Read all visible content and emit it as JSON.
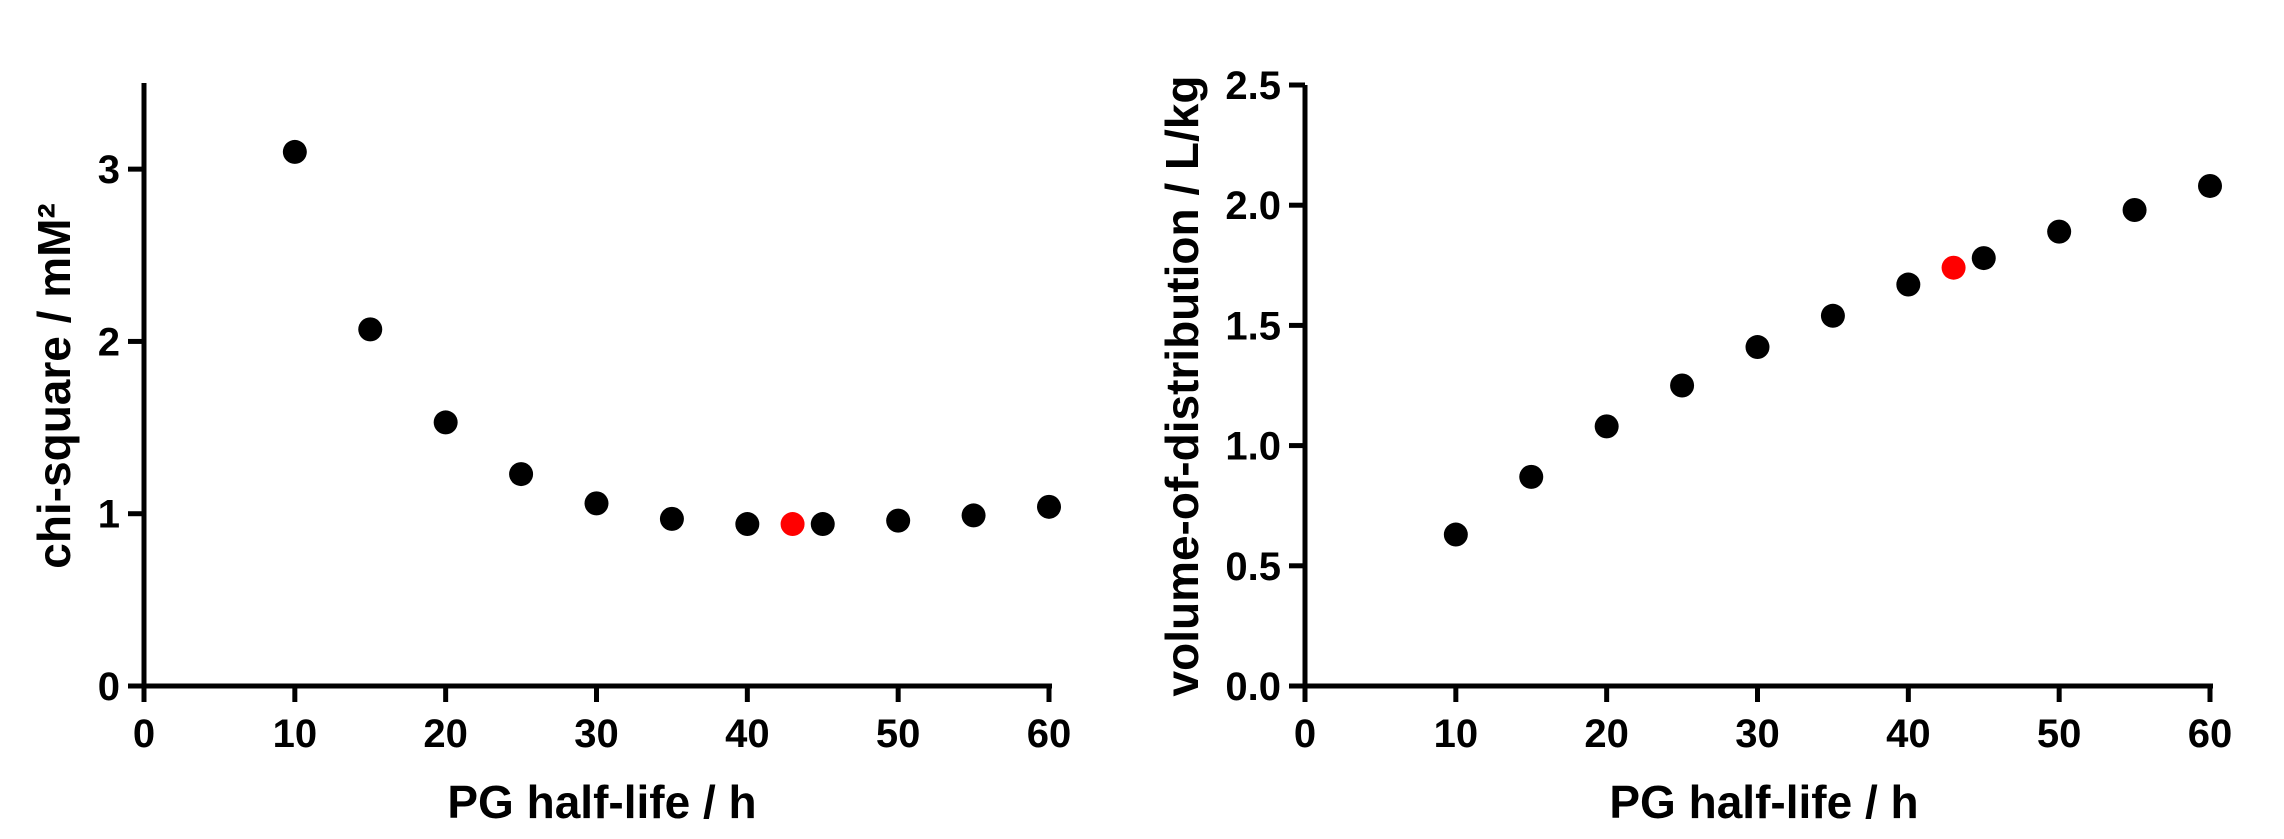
{
  "chart_data": [
    {
      "type": "scatter",
      "xlabel": "PG half-life / h",
      "ylabel": "chi-square / mM²",
      "xlim": [
        0,
        60
      ],
      "ylim": [
        0,
        3.5
      ],
      "xticks": [
        "0",
        "10",
        "20",
        "30",
        "40",
        "50",
        "60"
      ],
      "yticks": [
        "0",
        "1",
        "2",
        "3"
      ],
      "grid": false,
      "series": [
        {
          "color": "#000000",
          "points": [
            [
              10,
              3.1
            ],
            [
              15,
              2.07
            ],
            [
              20,
              1.53
            ],
            [
              25,
              1.23
            ],
            [
              30,
              1.06
            ],
            [
              35,
              0.97
            ],
            [
              40,
              0.94
            ],
            [
              45,
              0.94
            ],
            [
              50,
              0.96
            ],
            [
              55,
              0.99
            ],
            [
              60,
              1.04
            ]
          ]
        },
        {
          "color": "#ff0000",
          "points": [
            [
              43,
              0.94
            ]
          ]
        }
      ]
    },
    {
      "type": "scatter",
      "xlabel": "PG half-life / h",
      "ylabel": "volume-of-distribution / L/kg",
      "xlim": [
        0,
        60
      ],
      "ylim": [
        0,
        2.5
      ],
      "xticks": [
        "0",
        "10",
        "20",
        "30",
        "40",
        "50",
        "60"
      ],
      "yticks": [
        "0.0",
        "0.5",
        "1.0",
        "1.5",
        "2.0",
        "2.5"
      ],
      "grid": false,
      "series": [
        {
          "color": "#000000",
          "points": [
            [
              10,
              0.63
            ],
            [
              15,
              0.87
            ],
            [
              20,
              1.08
            ],
            [
              25,
              1.25
            ],
            [
              30,
              1.41
            ],
            [
              35,
              1.54
            ],
            [
              40,
              1.67
            ],
            [
              45,
              1.78
            ],
            [
              50,
              1.89
            ],
            [
              55,
              1.98
            ],
            [
              60,
              2.08
            ]
          ]
        },
        {
          "color": "#ff0000",
          "points": [
            [
              43,
              1.74
            ]
          ]
        }
      ]
    }
  ]
}
